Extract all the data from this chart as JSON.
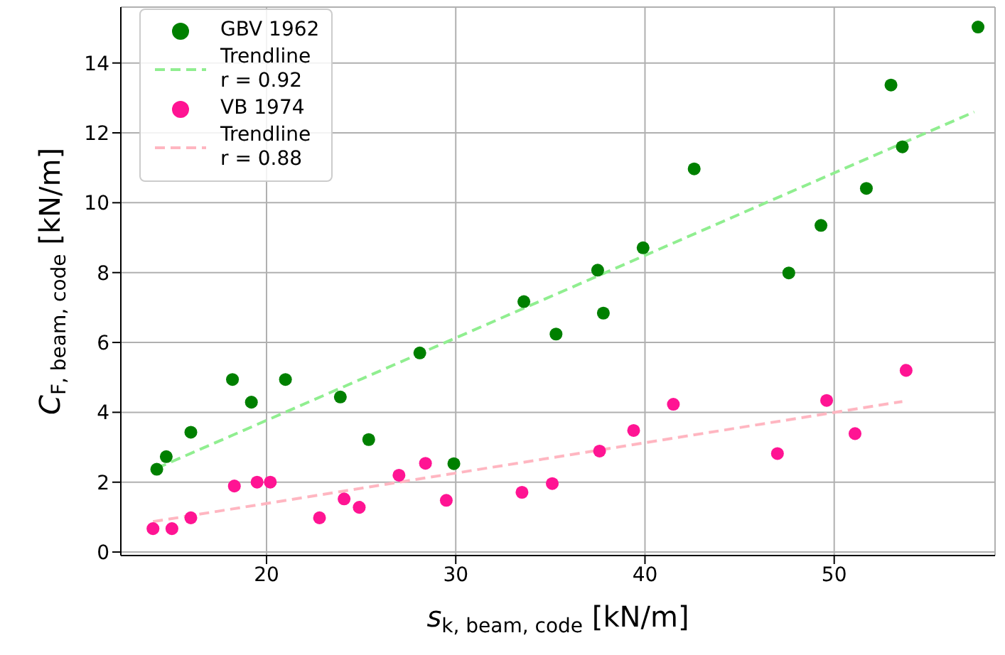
{
  "chart_data": {
    "type": "scatter",
    "xlabel": "s$_{k, beam, code}$ [kN/m]",
    "ylabel": "C$_{F, beam, code}$ [kN/m]",
    "xlim": [
      12.3,
      58.5
    ],
    "ylim": [
      -0.1,
      15.6
    ],
    "xticks": [
      20,
      30,
      40,
      50
    ],
    "yticks": [
      0,
      2,
      4,
      6,
      8,
      10,
      12,
      14
    ],
    "grid": true,
    "legend": "top left",
    "series": [
      {
        "name": "GBV 1962",
        "type": "scatter",
        "marker": "circle",
        "color": "#008000",
        "x": [
          14.2,
          14.7,
          16.0,
          18.2,
          19.2,
          21.0,
          23.9,
          25.4,
          28.1,
          29.9,
          33.6,
          35.3,
          37.5,
          37.8,
          39.9,
          42.6,
          47.6,
          49.3,
          51.7,
          53.0,
          53.6,
          57.6
        ],
        "values": [
          2.37,
          2.73,
          3.43,
          4.94,
          4.29,
          4.94,
          4.44,
          3.22,
          5.7,
          2.53,
          7.17,
          6.24,
          8.07,
          6.84,
          8.71,
          10.97,
          7.99,
          9.35,
          10.41,
          13.37,
          11.6,
          15.03
        ]
      },
      {
        "name": "Trendline\nr = 0.92",
        "type": "line",
        "marker": "none",
        "line_style": "dashed",
        "color": "#90ee90",
        "x": [
          14.2,
          57.4
        ],
        "values": [
          2.4,
          12.6
        ]
      },
      {
        "name": "VB 1974",
        "type": "scatter",
        "marker": "circle",
        "color": "#ff1493",
        "x": [
          14.0,
          15.0,
          16.0,
          18.3,
          19.5,
          20.2,
          22.8,
          24.1,
          24.9,
          27.0,
          28.4,
          29.5,
          33.5,
          35.1,
          37.6,
          39.4,
          41.5,
          47.0,
          49.6,
          51.1,
          53.8
        ],
        "values": [
          0.67,
          0.67,
          0.98,
          1.89,
          2.0,
          2.0,
          0.98,
          1.52,
          1.28,
          2.2,
          2.54,
          1.48,
          1.71,
          1.96,
          2.89,
          3.48,
          4.23,
          2.82,
          4.34,
          3.39,
          5.2
        ]
      },
      {
        "name": "Trendline\nr = 0.88",
        "type": "line",
        "marker": "none",
        "line_style": "dashed",
        "color": "#ffb6c1",
        "x": [
          14.0,
          53.6
        ],
        "values": [
          0.87,
          4.31
        ]
      }
    ]
  }
}
